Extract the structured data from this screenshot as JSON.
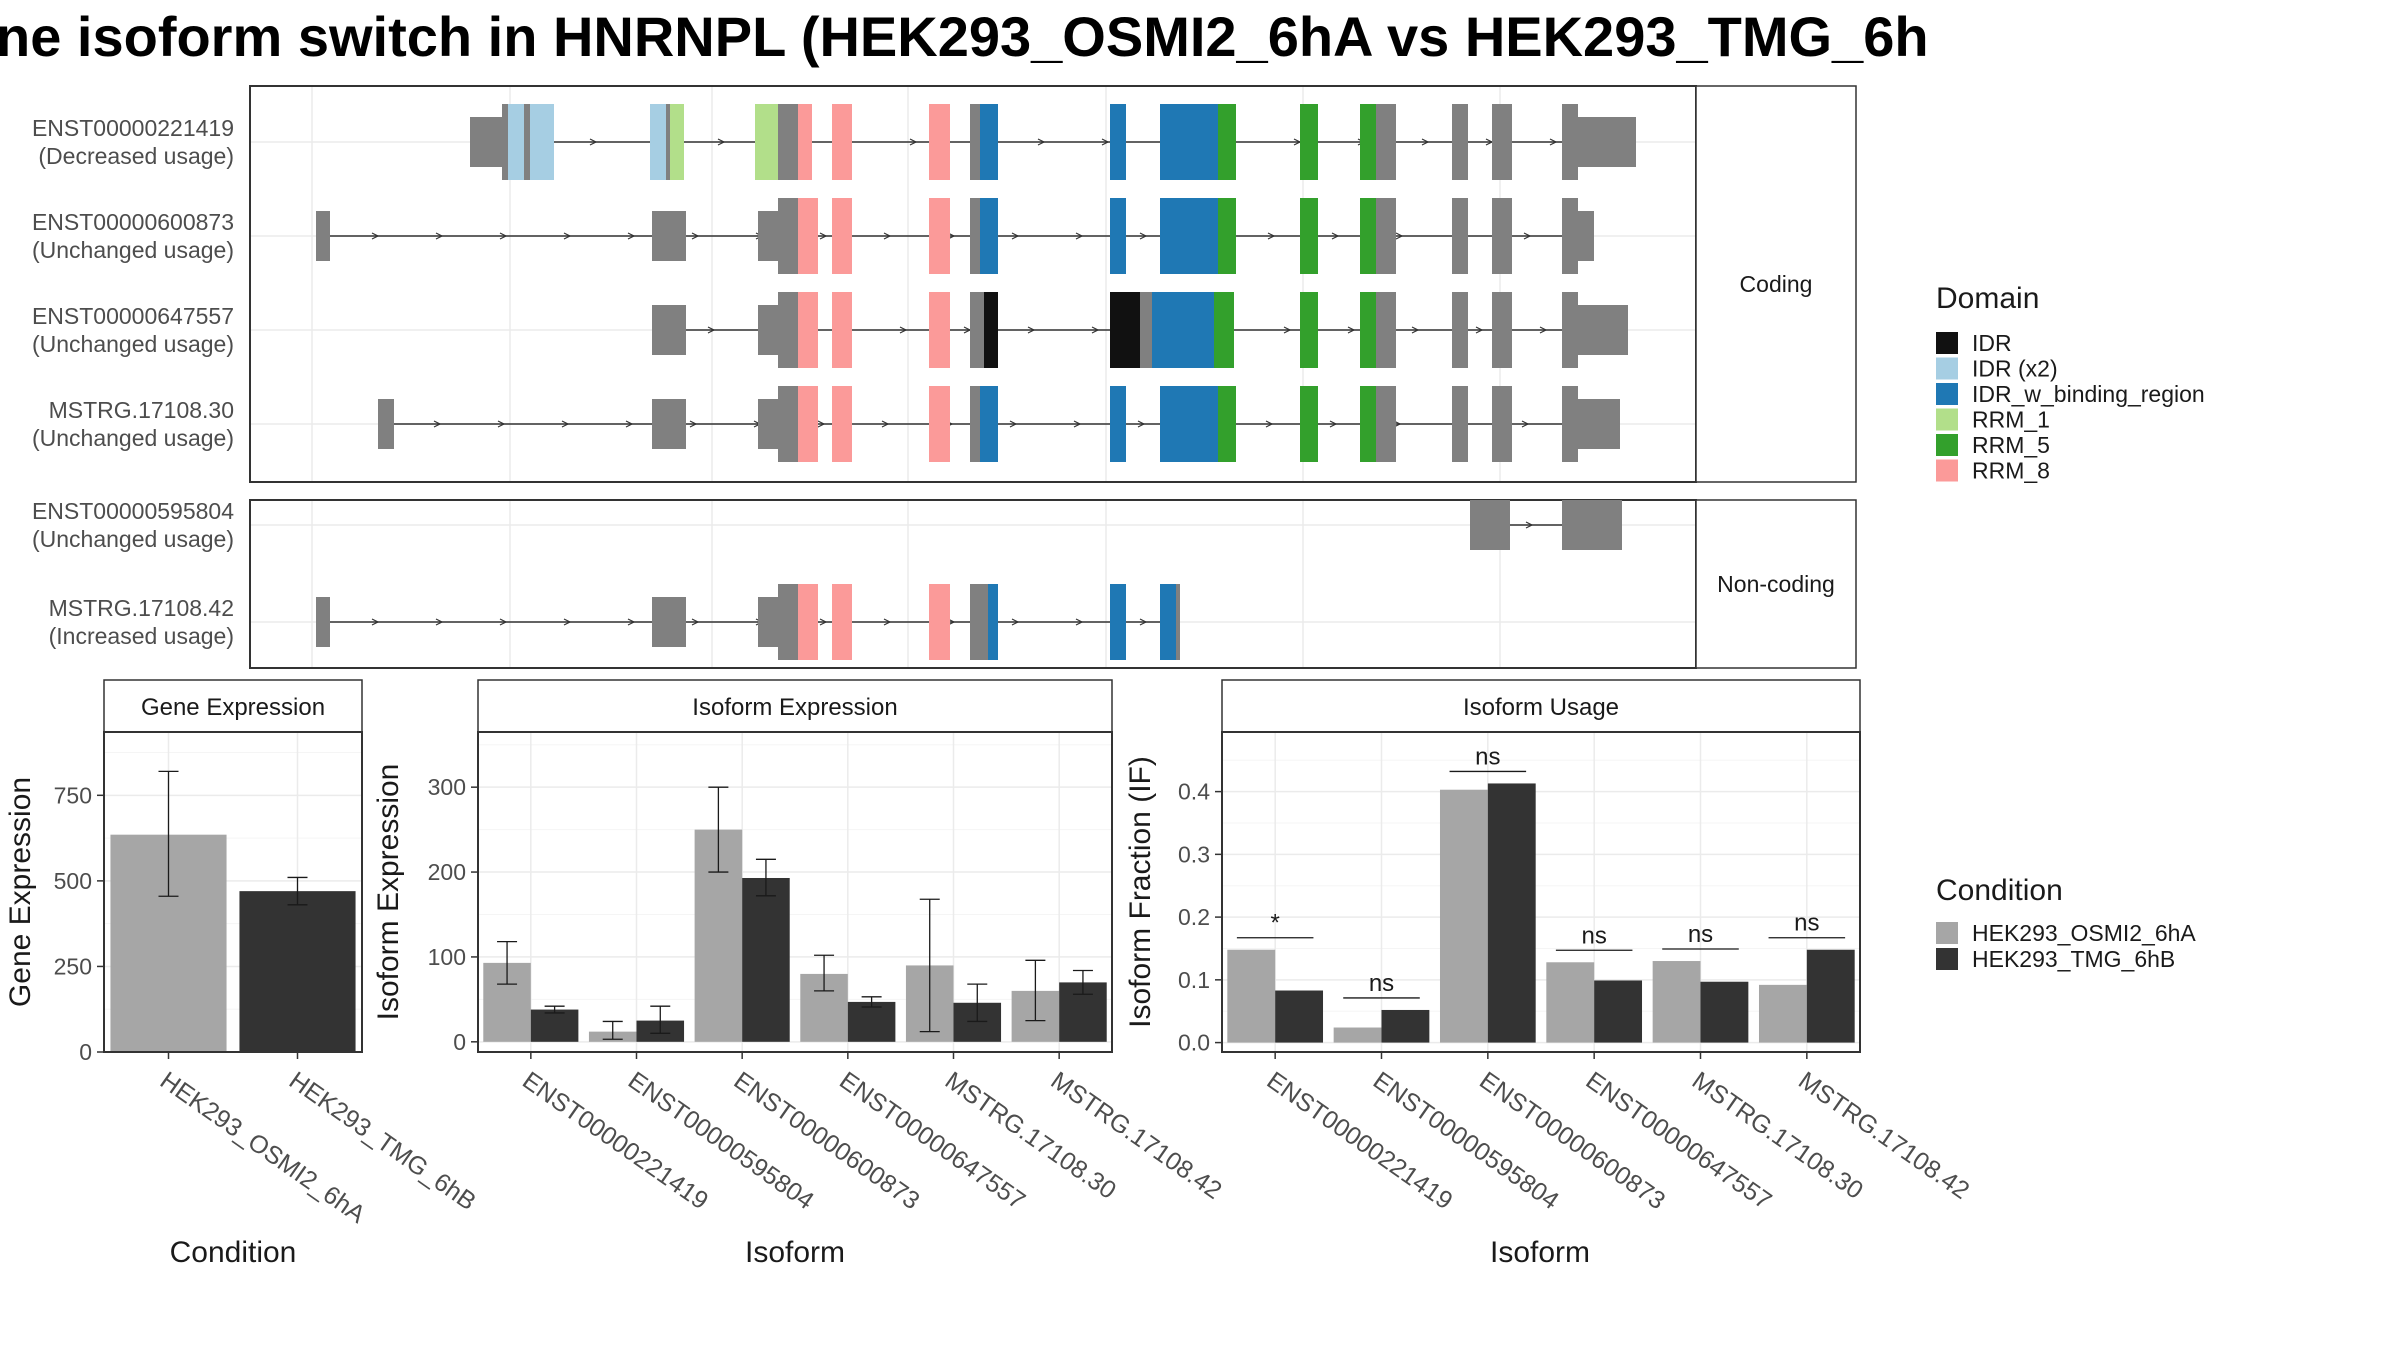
{
  "title": "ne isoform switch in HNRNPL (HEK293_OSMI2_6hA vs HEK293_TMG_6h",
  "colors": {
    "IDR": "#111111",
    "IDR (x2)": "#a6cee3",
    "IDR_w_binding_region": "#1f78b4",
    "RRM_1": "#b2df8a",
    "RRM_5": "#33a02c",
    "RRM_8": "#fb9a99",
    "exon": "#808080",
    "HEK293_OSMI2_6hA": "#a6a6a6",
    "HEK293_TMG_6hB": "#333333"
  },
  "chart_data": [
    {
      "type": "transcript_structure",
      "panels": [
        {
          "strip": "Coding",
          "isoforms": [
            {
              "id": "ENST00000221419",
              "usage": "(Decreased usage)"
            },
            {
              "id": "ENST00000600873",
              "usage": "(Unchanged usage)"
            },
            {
              "id": "ENST00000647557",
              "usage": "(Unchanged usage)"
            },
            {
              "id": "MSTRG.17108.30",
              "usage": "(Unchanged usage)"
            }
          ]
        },
        {
          "strip": "Non-coding",
          "isoforms": [
            {
              "id": "ENST00000595804",
              "usage": "(Unchanged usage)"
            },
            {
              "id": "MSTRG.17108.42",
              "usage": "(Increased usage)"
            }
          ]
        }
      ],
      "legend": {
        "title": "Domain",
        "items": [
          "IDR",
          "IDR (x2)",
          "IDR_w_binding_region",
          "RRM_1",
          "RRM_5",
          "RRM_8"
        ]
      }
    },
    {
      "type": "bar",
      "strip": "Gene Expression",
      "xlabel": "Condition",
      "ylabel": "Gene Expression",
      "categories": [
        "HEK293_OSMI2_6hA",
        "HEK293_TMG_6hB"
      ],
      "values": [
        635,
        470
      ],
      "errors_low": [
        455,
        430
      ],
      "errors_high": [
        820,
        510
      ],
      "ylim": [
        0,
        935
      ],
      "yticks": [
        0,
        250,
        500,
        750
      ]
    },
    {
      "type": "bar",
      "strip": "Isoform Expression",
      "xlabel": "Isoform",
      "ylabel": "Isoform Expression",
      "categories": [
        "ENST00000221419",
        "ENST00000595804",
        "ENST00000600873",
        "ENST00000647557",
        "MSTRG.17108.30",
        "MSTRG.17108.42"
      ],
      "series": [
        {
          "name": "HEK293_OSMI2_6hA",
          "values": [
            93,
            12,
            250,
            80,
            90,
            60
          ],
          "low": [
            68,
            3,
            200,
            60,
            12,
            25
          ],
          "high": [
            118,
            24,
            300,
            102,
            168,
            96
          ]
        },
        {
          "name": "HEK293_TMG_6hB",
          "values": [
            38,
            25,
            193,
            47,
            46,
            70
          ],
          "low": [
            34,
            10,
            172,
            41,
            24,
            56
          ],
          "high": [
            42,
            42,
            215,
            53,
            68,
            84
          ]
        }
      ],
      "ylim": [
        -12,
        365
      ],
      "yticks": [
        0,
        100,
        200,
        300
      ]
    },
    {
      "type": "bar",
      "strip": "Isoform Usage",
      "xlabel": "Isoform",
      "ylabel": "Isoform Fraction (IF)",
      "categories": [
        "ENST00000221419",
        "ENST00000595804",
        "ENST00000600873",
        "ENST00000647557",
        "MSTRG.17108.30",
        "MSTRG.17108.42"
      ],
      "series": [
        {
          "name": "HEK293_OSMI2_6hA",
          "values": [
            0.148,
            0.024,
            0.403,
            0.128,
            0.13,
            0.092
          ]
        },
        {
          "name": "HEK293_TMG_6hB",
          "values": [
            0.083,
            0.052,
            0.413,
            0.099,
            0.097,
            0.148
          ]
        }
      ],
      "significance": [
        "*",
        "ns",
        "ns",
        "ns",
        "ns",
        "ns"
      ],
      "ylim": [
        -0.015,
        0.495
      ],
      "yticks": [
        0.0,
        0.1,
        0.2,
        0.3,
        0.4
      ],
      "ytick_labels": [
        "0.0",
        "0.1",
        "0.2",
        "0.3",
        "0.4"
      ]
    }
  ],
  "legend_condition": {
    "title": "Condition",
    "items": [
      "HEK293_OSMI2_6hA",
      "HEK293_TMG_6hB"
    ]
  }
}
